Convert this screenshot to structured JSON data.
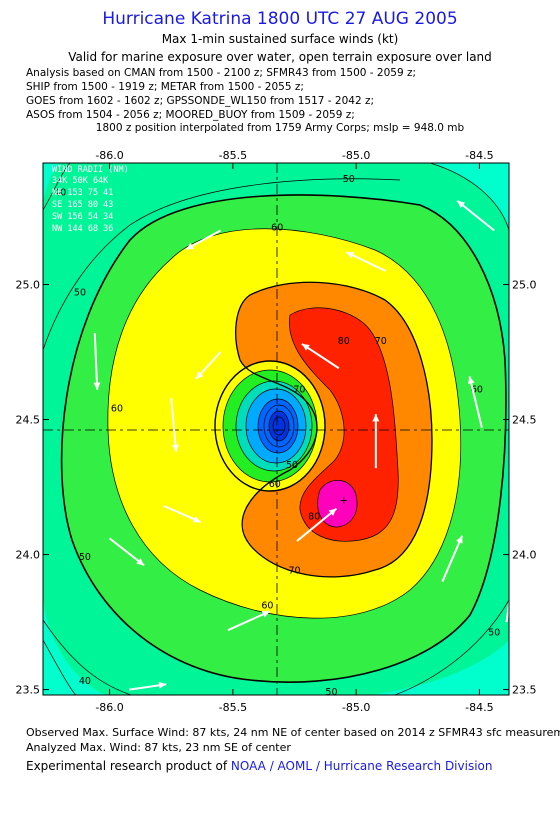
{
  "header": {
    "title": "Hurricane Katrina 1800 UTC 27 AUG 2005",
    "subtitle": "Max 1-min sustained surface winds (kt)",
    "valid": "Valid for marine exposure over water, open terrain exposure over land"
  },
  "sources": [
    "Analysis based on  CMAN from 1500 - 2100 z;  SFMR43 from 1500 - 2059 z;",
    "SHIP from 1500 - 1919 z;  METAR from 1500 - 2055 z;",
    "GOES from 1602 - 1602 z;  GPSSONDE_WL150 from 1517 - 2042 z;",
    "ASOS from 1504 - 2056 z;  MOORED_BUOY from 1509 - 2059 z;"
  ],
  "interp_note": "1800 z position interpolated from 1759 Army Corps; mslp = 948.0 mb",
  "wind_radii": {
    "header": "WIND RADII (NM)",
    "rows": [
      "    34K  50K  64K",
      "NE 153  75  41",
      "SE 165  80  43",
      "SW 156  54  34",
      "NW 144  68  36"
    ]
  },
  "chart_data": {
    "type": "heatmap",
    "title": "Max 1-min sustained surface winds (kt)",
    "x_ticks": [
      -86.0,
      -85.5,
      -85.0,
      -84.5
    ],
    "x_tick_labels": [
      "-86.0",
      "-85.5",
      "-85.0",
      "-84.5"
    ],
    "y_ticks": [
      25.0,
      24.5,
      24.0,
      23.5
    ],
    "y_tick_labels": [
      "25.0",
      "24.5",
      "24.0",
      "23.5"
    ],
    "xlim": [
      -86.27,
      -84.38
    ],
    "ylim": [
      23.48,
      25.45
    ],
    "center": {
      "lon": -85.3,
      "lat": 24.47
    },
    "max_wind": {
      "lon": -85.05,
      "lat": 24.2,
      "value": 87
    },
    "contour_levels": [
      10,
      20,
      30,
      40,
      50,
      60,
      70,
      80
    ],
    "contour_labels": [
      {
        "text": "40",
        "lon": -86.2,
        "lat": 25.33
      },
      {
        "text": "50",
        "lon": -85.03,
        "lat": 25.38
      },
      {
        "text": "60",
        "lon": -85.32,
        "lat": 25.2
      },
      {
        "text": "70",
        "lon": -84.9,
        "lat": 24.78
      },
      {
        "text": "80",
        "lon": -85.05,
        "lat": 24.78
      },
      {
        "text": "70",
        "lon": -85.23,
        "lat": 24.6
      },
      {
        "text": "60",
        "lon": -85.97,
        "lat": 24.53
      },
      {
        "text": "60",
        "lon": -84.51,
        "lat": 24.6
      },
      {
        "text": "50",
        "lon": -85.26,
        "lat": 24.32
      },
      {
        "text": "60",
        "lon": -85.33,
        "lat": 24.25
      },
      {
        "text": "80",
        "lon": -85.17,
        "lat": 24.13
      },
      {
        "text": "70",
        "lon": -85.25,
        "lat": 23.93
      },
      {
        "text": "60",
        "lon": -85.36,
        "lat": 23.8
      },
      {
        "text": "50",
        "lon": -86.1,
        "lat": 23.98
      },
      {
        "text": "50",
        "lon": -84.44,
        "lat": 23.7
      },
      {
        "text": "40",
        "lon": -86.1,
        "lat": 23.52
      },
      {
        "text": "50",
        "lon": -85.1,
        "lat": 23.48
      },
      {
        "text": "50",
        "lon": -86.12,
        "lat": 24.96
      }
    ],
    "vectors": [
      {
        "lon": -84.44,
        "lat": 25.2,
        "dlon": -0.15,
        "dlat": 0.11
      },
      {
        "lon": -85.55,
        "lat": 25.2,
        "dlon": -0.14,
        "dlat": -0.07
      },
      {
        "lon": -84.88,
        "lat": 25.05,
        "dlon": -0.16,
        "dlat": 0.07
      },
      {
        "lon": -86.06,
        "lat": 24.82,
        "dlon": 0.01,
        "dlat": -0.21
      },
      {
        "lon": -85.55,
        "lat": 24.75,
        "dlon": -0.1,
        "dlat": -0.1
      },
      {
        "lon": -85.07,
        "lat": 24.69,
        "dlon": -0.15,
        "dlat": 0.09
      },
      {
        "lon": -85.75,
        "lat": 24.58,
        "dlon": 0.02,
        "dlat": -0.2
      },
      {
        "lon": -84.49,
        "lat": 24.47,
        "dlon": -0.05,
        "dlat": 0.19
      },
      {
        "lon": -84.92,
        "lat": 24.32,
        "dlon": 0.0,
        "dlat": 0.2
      },
      {
        "lon": -85.78,
        "lat": 24.18,
        "dlon": 0.15,
        "dlat": -0.06
      },
      {
        "lon": -85.24,
        "lat": 24.05,
        "dlon": 0.16,
        "dlat": 0.12
      },
      {
        "lon": -86.0,
        "lat": 24.06,
        "dlon": 0.14,
        "dlat": -0.1
      },
      {
        "lon": -84.65,
        "lat": 23.9,
        "dlon": 0.08,
        "dlat": 0.17
      },
      {
        "lon": -85.52,
        "lat": 23.72,
        "dlon": 0.17,
        "dlat": 0.07
      },
      {
        "lon": -84.39,
        "lat": 23.75,
        "dlon": 0.03,
        "dlat": 0.2
      },
      {
        "lon": -85.92,
        "lat": 23.5,
        "dlon": 0.15,
        "dlat": 0.02
      }
    ]
  },
  "footer": {
    "observed": "Observed Max. Surface Wind: 87 kts, 24 nm NE of center based on 2014 z SFMR43 sfc measurement",
    "analyzed": "Analyzed Max. Wind: 87 kts, 23 nm SE of center",
    "credit_prefix": "Experimental research product of ",
    "credit_org": "NOAA / AOML / Hurricane Research Division"
  }
}
